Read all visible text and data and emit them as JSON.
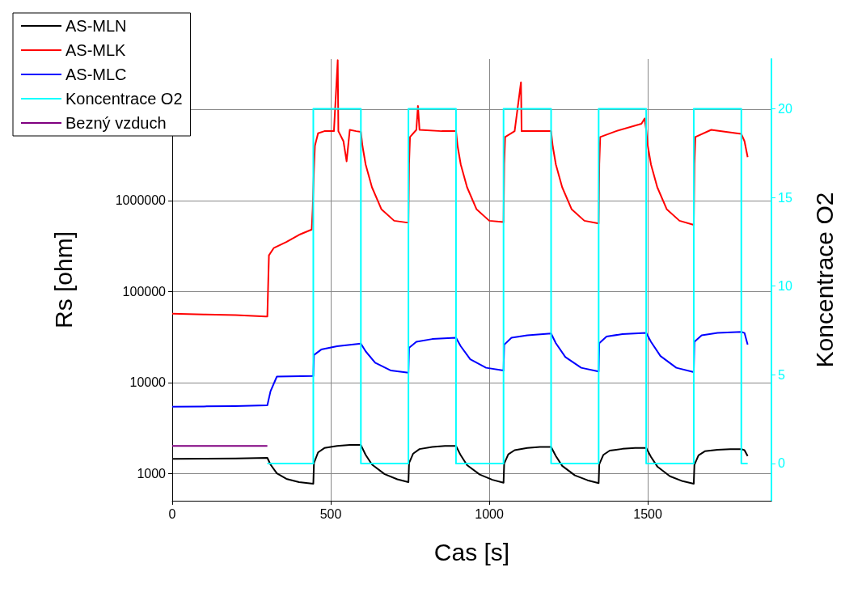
{
  "chart_data": {
    "type": "line",
    "xlabel": "Cas [s]",
    "ylabel": "Rs [ohm]",
    "y2label": "Koncentrace O2",
    "log": "y",
    "grid": true,
    "legend": "top left",
    "marker": "none",
    "line_style": "solid",
    "xlim": [
      0,
      1890
    ],
    "xticks": [
      0,
      500,
      1000,
      1500
    ],
    "ylim": [
      500,
      36000000
    ],
    "yticks": [
      1000,
      10000,
      100000,
      1000000,
      {
        "value": 10000000,
        "label": null
      }
    ],
    "y2lim": [
      -2.1,
      22.8
    ],
    "y2ticks": [
      0,
      5,
      10,
      15,
      20
    ],
    "series": [
      {
        "name": "AS-MLN",
        "color": "#000000",
        "x": [
          0,
          100,
          200,
          300,
          310,
          330,
          360,
          400,
          445,
          447,
          460,
          480,
          520,
          560,
          595,
          610,
          630,
          670,
          710,
          745,
          747,
          760,
          780,
          820,
          860,
          895,
          910,
          930,
          970,
          1010,
          1045,
          1047,
          1060,
          1080,
          1120,
          1160,
          1195,
          1210,
          1230,
          1270,
          1310,
          1345,
          1347,
          1360,
          1380,
          1420,
          1460,
          1495,
          1510,
          1530,
          1570,
          1610,
          1645,
          1647,
          1660,
          1680,
          1720,
          1760,
          1795,
          1805,
          1815
        ],
        "values": [
          1440,
          1450,
          1460,
          1480,
          1250,
          1000,
          870,
          800,
          770,
          1300,
          1700,
          1900,
          2000,
          2050,
          2050,
          1600,
          1250,
          980,
          860,
          800,
          1300,
          1650,
          1850,
          1950,
          2000,
          2000,
          1580,
          1230,
          970,
          850,
          790,
          1280,
          1620,
          1800,
          1900,
          1950,
          1950,
          1550,
          1210,
          950,
          840,
          780,
          1260,
          1600,
          1780,
          1860,
          1900,
          1900,
          1520,
          1190,
          930,
          820,
          770,
          1240,
          1580,
          1750,
          1820,
          1850,
          1850,
          1800,
          1550
        ]
      },
      {
        "name": "AS-MLK",
        "color": "#ff0000",
        "x": [
          0,
          100,
          200,
          295,
          300,
          305,
          320,
          360,
          400,
          440,
          443,
          447,
          450,
          460,
          480,
          510,
          522,
          524,
          540,
          550,
          560,
          580,
          595,
          600,
          610,
          630,
          660,
          700,
          745,
          747,
          750,
          770,
          775,
          780,
          850,
          895,
          900,
          910,
          930,
          960,
          1000,
          1045,
          1047,
          1050,
          1080,
          1100,
          1102,
          1150,
          1195,
          1200,
          1210,
          1230,
          1260,
          1300,
          1345,
          1347,
          1350,
          1400,
          1480,
          1490,
          1495,
          1500,
          1510,
          1530,
          1560,
          1600,
          1645,
          1647,
          1650,
          1700,
          1780,
          1795,
          1805,
          1815
        ],
        "values": [
          57000,
          56000,
          55000,
          53000,
          53000,
          250000,
          300000,
          350000,
          420000,
          480000,
          800000,
          2200000,
          4000000,
          5500000,
          5800000,
          5800000,
          35000000,
          5800000,
          4500000,
          2700000,
          6000000,
          5800000,
          5700000,
          4000000,
          2500000,
          1400000,
          800000,
          600000,
          570000,
          2500000,
          5000000,
          6000000,
          11000000,
          6000000,
          5800000,
          5800000,
          4000000,
          2500000,
          1400000,
          800000,
          600000,
          580000,
          2500000,
          5000000,
          5800000,
          20000000,
          5800000,
          5800000,
          5800000,
          4000000,
          2500000,
          1400000,
          800000,
          600000,
          560000,
          2500000,
          5000000,
          5800000,
          7000000,
          8000000,
          6000000,
          4000000,
          2500000,
          1400000,
          800000,
          600000,
          540000,
          2500000,
          5000000,
          6000000,
          5500000,
          5400000,
          4500000,
          3000000
        ]
      },
      {
        "name": "AS-MLC",
        "color": "#0000ff",
        "x": [
          0,
          100,
          200,
          300,
          310,
          330,
          445,
          447,
          470,
          520,
          595,
          610,
          640,
          690,
          745,
          747,
          770,
          820,
          895,
          910,
          940,
          990,
          1045,
          1047,
          1070,
          1120,
          1195,
          1210,
          1240,
          1290,
          1345,
          1347,
          1370,
          1420,
          1495,
          1510,
          1540,
          1590,
          1645,
          1647,
          1670,
          1720,
          1795,
          1805,
          1815
        ],
        "values": [
          5400,
          5450,
          5500,
          5600,
          8000,
          11600,
          11800,
          20000,
          23000,
          25000,
          26700,
          22000,
          16500,
          13500,
          12800,
          24000,
          28000,
          30000,
          31000,
          25000,
          18000,
          14500,
          13500,
          26000,
          31000,
          33000,
          34500,
          27000,
          19000,
          14500,
          13200,
          27000,
          32000,
          34000,
          35000,
          28000,
          19500,
          14500,
          13000,
          28000,
          33000,
          35000,
          36000,
          35000,
          26000
        ]
      },
      {
        "name": "Koncentrace O2",
        "color": "#00ffff",
        "axis": "y2",
        "x": [
          300,
          445,
          445,
          595,
          595,
          745,
          745,
          895,
          895,
          1045,
          1045,
          1195,
          1195,
          1345,
          1345,
          1495,
          1495,
          1645,
          1645,
          1795,
          1795,
          1815
        ],
        "values": [
          0,
          0,
          20,
          20,
          0,
          0,
          20,
          20,
          0,
          0,
          20,
          20,
          0,
          0,
          20,
          20,
          0,
          0,
          20,
          20,
          0,
          0
        ]
      },
      {
        "name": "Bezný vzduch",
        "color": "#800080",
        "x": [
          0,
          300
        ],
        "values": [
          2000,
          2000
        ]
      }
    ]
  }
}
